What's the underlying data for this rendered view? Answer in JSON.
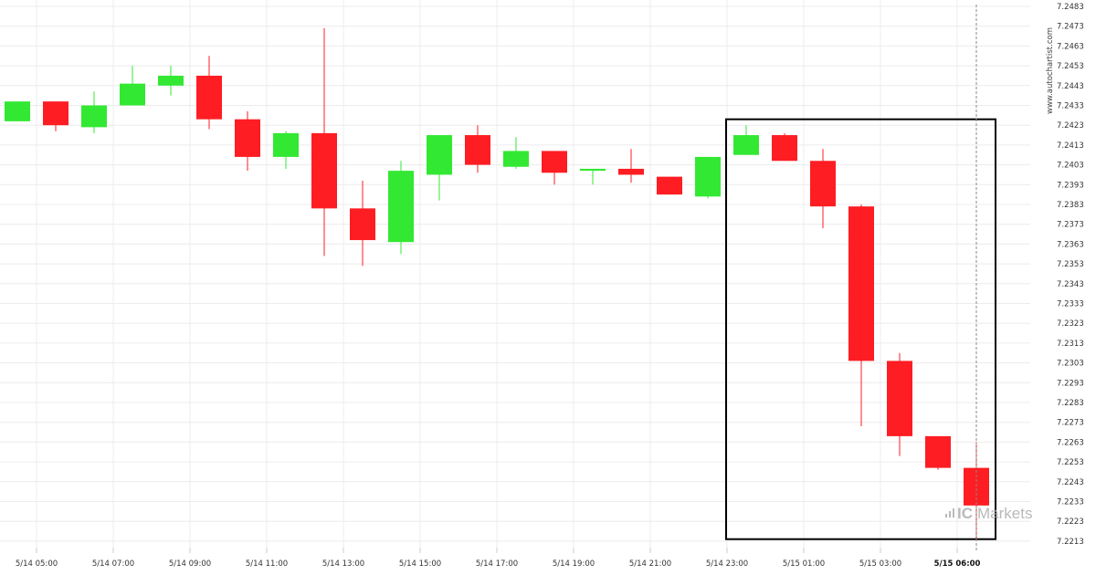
{
  "watermark": "www.autochartist.com",
  "logo": {
    "prefix": "IC",
    "text": "Markets"
  },
  "colors": {
    "up": "#33e833",
    "down": "#fe1d22",
    "grid": "#ececec",
    "box": "#000000",
    "current_line": "#888888"
  },
  "chart_data": {
    "type": "candlestick",
    "title": "",
    "xlabel": "",
    "ylabel": "",
    "ylim": [
      7.2208,
      7.2487
    ],
    "yticks": [
      "7.2483",
      "7.2473",
      "7.2463",
      "7.2453",
      "7.2443",
      "7.2433",
      "7.2423",
      "7.2413",
      "7.2403",
      "7.2393",
      "7.2383",
      "7.2373",
      "7.2363",
      "7.2353",
      "7.2343",
      "7.2333",
      "7.2323",
      "7.2313",
      "7.2303",
      "7.2293",
      "7.2283",
      "7.2273",
      "7.2263",
      "7.2253",
      "7.2243",
      "7.2233",
      "7.2223",
      "7.2213"
    ],
    "xticks": [
      {
        "index": 0.5,
        "label": "5/14 05:00",
        "bold": false
      },
      {
        "index": 2.5,
        "label": "5/14 07:00",
        "bold": false
      },
      {
        "index": 4.5,
        "label": "5/14 09:00",
        "bold": false
      },
      {
        "index": 6.5,
        "label": "5/14 11:00",
        "bold": false
      },
      {
        "index": 8.5,
        "label": "5/14 13:00",
        "bold": false
      },
      {
        "index": 10.5,
        "label": "5/14 15:00",
        "bold": false
      },
      {
        "index": 12.5,
        "label": "5/14 17:00",
        "bold": false
      },
      {
        "index": 14.5,
        "label": "5/14 19:00",
        "bold": false
      },
      {
        "index": 16.5,
        "label": "5/14 21:00",
        "bold": false
      },
      {
        "index": 18.5,
        "label": "5/14 23:00",
        "bold": false
      },
      {
        "index": 20.5,
        "label": "5/15 01:00",
        "bold": false
      },
      {
        "index": 22.5,
        "label": "5/15 03:00",
        "bold": false
      },
      {
        "index": 24.5,
        "label": "5/15 06:00",
        "bold": true
      }
    ],
    "candles": [
      {
        "o": 7.2425,
        "h": 7.2435,
        "l": 7.2425,
        "c": 7.2435
      },
      {
        "o": 7.2435,
        "h": 7.2435,
        "l": 7.242,
        "c": 7.2423
      },
      {
        "o": 7.2422,
        "h": 7.244,
        "l": 7.2419,
        "c": 7.2433
      },
      {
        "o": 7.2433,
        "h": 7.2453,
        "l": 7.2433,
        "c": 7.2444
      },
      {
        "o": 7.2443,
        "h": 7.2453,
        "l": 7.2438,
        "c": 7.2448
      },
      {
        "o": 7.2448,
        "h": 7.2458,
        "l": 7.2421,
        "c": 7.2426
      },
      {
        "o": 7.2426,
        "h": 7.243,
        "l": 7.24,
        "c": 7.2407
      },
      {
        "o": 7.2407,
        "h": 7.242,
        "l": 7.2401,
        "c": 7.2419
      },
      {
        "o": 7.2419,
        "h": 7.2472,
        "l": 7.2357,
        "c": 7.2381
      },
      {
        "o": 7.2381,
        "h": 7.2395,
        "l": 7.2352,
        "c": 7.2365
      },
      {
        "o": 7.2364,
        "h": 7.2405,
        "l": 7.2358,
        "c": 7.24
      },
      {
        "o": 7.2398,
        "h": 7.2418,
        "l": 7.2385,
        "c": 7.2418
      },
      {
        "o": 7.2418,
        "h": 7.2423,
        "l": 7.2399,
        "c": 7.2403
      },
      {
        "o": 7.2402,
        "h": 7.2417,
        "l": 7.2401,
        "c": 7.241
      },
      {
        "o": 7.241,
        "h": 7.241,
        "l": 7.2393,
        "c": 7.2399
      },
      {
        "o": 7.24,
        "h": 7.2401,
        "l": 7.2393,
        "c": 7.2401
      },
      {
        "o": 7.2401,
        "h": 7.2411,
        "l": 7.2394,
        "c": 7.2398
      },
      {
        "o": 7.2397,
        "h": 7.2397,
        "l": 7.2388,
        "c": 7.2388
      },
      {
        "o": 7.2387,
        "h": 7.2407,
        "l": 7.2386,
        "c": 7.2407
      },
      {
        "o": 7.2408,
        "h": 7.2423,
        "l": 7.2408,
        "c": 7.2418
      },
      {
        "o": 7.2418,
        "h": 7.2419,
        "l": 7.2405,
        "c": 7.2405
      },
      {
        "o": 7.2405,
        "h": 7.2411,
        "l": 7.2371,
        "c": 7.2382
      },
      {
        "o": 7.2382,
        "h": 7.2383,
        "l": 7.2271,
        "c": 7.2304
      },
      {
        "o": 7.2304,
        "h": 7.2308,
        "l": 7.2256,
        "c": 7.2266
      },
      {
        "o": 7.2266,
        "h": 7.2266,
        "l": 7.2249,
        "c": 7.225
      },
      {
        "o": 7.225,
        "h": 7.2263,
        "l": 7.2213,
        "c": 7.2231
      }
    ],
    "pattern_box": {
      "start_index": 18.5,
      "end_index": 25.5,
      "top": 7.2426,
      "bottom": 7.2214
    },
    "current_index": 25,
    "grid": true
  }
}
